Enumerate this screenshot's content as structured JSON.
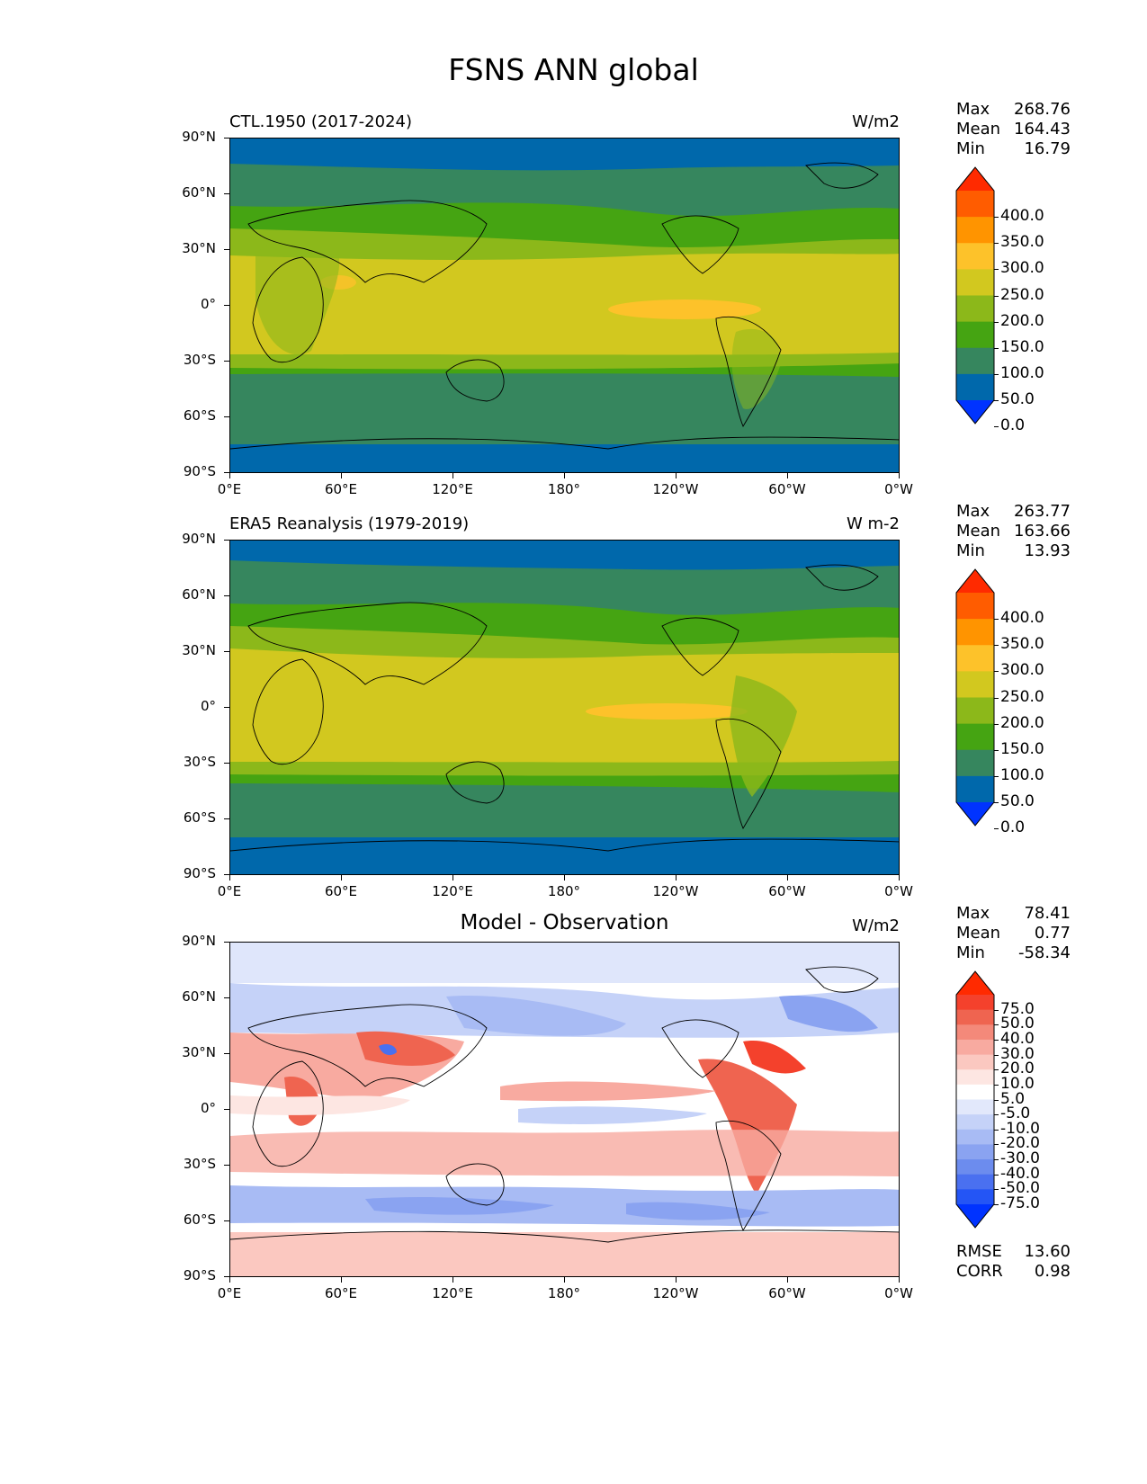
{
  "title": "FSNS ANN global",
  "axes": {
    "lat_ticks": [
      "90°N",
      "60°N",
      "30°N",
      "0°",
      "30°S",
      "60°S",
      "90°S"
    ],
    "lon_ticks": [
      "0°E",
      "60°E",
      "120°E",
      "180°",
      "120°W",
      "60°W",
      "0°W"
    ]
  },
  "panels": [
    {
      "title": "CTL.1950 (2017-2024)",
      "units": "W/m2",
      "stats": [
        {
          "key": "Max",
          "value": "268.76"
        },
        {
          "key": "Mean",
          "value": "164.43"
        },
        {
          "key": "Min",
          "value": "16.79"
        }
      ],
      "colorbar": {
        "labels": [
          "400.0",
          "350.0",
          "300.0",
          "250.0",
          "200.0",
          "150.0",
          "100.0",
          "50.0",
          "0.0"
        ],
        "colors": [
          "#ff2a00",
          "#ff5c00",
          "#ff9400",
          "#fdc22a",
          "#d2c81f",
          "#8cb81a",
          "#45a412",
          "#36865e",
          "#0068ab",
          "#0033ff"
        ]
      }
    },
    {
      "title": "ERA5 Reanalysis (1979-2019)",
      "units": "W m-2",
      "stats": [
        {
          "key": "Max",
          "value": "263.77"
        },
        {
          "key": "Mean",
          "value": "163.66"
        },
        {
          "key": "Min",
          "value": "13.93"
        }
      ],
      "colorbar": {
        "labels": [
          "400.0",
          "350.0",
          "300.0",
          "250.0",
          "200.0",
          "150.0",
          "100.0",
          "50.0",
          "0.0"
        ],
        "colors": [
          "#ff2a00",
          "#ff5c00",
          "#ff9400",
          "#fdc22a",
          "#d2c81f",
          "#8cb81a",
          "#45a412",
          "#36865e",
          "#0068ab",
          "#0033ff"
        ]
      }
    },
    {
      "title": "Model - Observation",
      "units": "W/m2",
      "stats": [
        {
          "key": "Max",
          "value": "78.41"
        },
        {
          "key": "Mean",
          "value": "0.77"
        },
        {
          "key": "Min",
          "value": "-58.34"
        }
      ],
      "colorbar": {
        "labels": [
          "75.0",
          "50.0",
          "40.0",
          "30.0",
          "20.0",
          "10.0",
          "5.0",
          "-5.0",
          "-10.0",
          "-20.0",
          "-30.0",
          "-40.0",
          "-50.0",
          "-75.0"
        ],
        "colors": [
          "#ff2a00",
          "#f4412c",
          "#ef6450",
          "#f4897a",
          "#f8aaa0",
          "#fbc8c0",
          "#fde6e2",
          "#ffffff",
          "#e2e8fb",
          "#c5d2f8",
          "#a8bbf4",
          "#8aa3f1",
          "#6c8cee",
          "#4a70f0",
          "#2455f5",
          "#0033ff"
        ]
      },
      "extra_stats": [
        {
          "key": "RMSE",
          "value": "13.60"
        },
        {
          "key": "CORR",
          "value": "0.98"
        }
      ]
    }
  ]
}
